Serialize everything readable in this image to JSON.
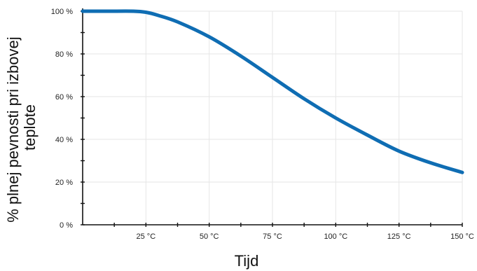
{
  "chart_data": {
    "type": "line",
    "xlabel": "Tijd",
    "ylabel_lines": [
      "% plnej pevnosti pri izbovej",
      "teplote"
    ],
    "xlim": [
      0,
      150
    ],
    "ylim": [
      0,
      100
    ],
    "x_ticks": [
      {
        "value": 25,
        "label": "25 °C"
      },
      {
        "value": 50,
        "label": "50 °C"
      },
      {
        "value": 75,
        "label": "75 °C"
      },
      {
        "value": 100,
        "label": "100 °C"
      },
      {
        "value": 125,
        "label": "125 °C"
      },
      {
        "value": 150,
        "label": "150 °C"
      }
    ],
    "x_minor_tick_step": 12.5,
    "y_ticks": [
      {
        "value": 0,
        "label": "0 %"
      },
      {
        "value": 20,
        "label": "20 %"
      },
      {
        "value": 40,
        "label": "40 %"
      },
      {
        "value": 60,
        "label": "60 %"
      },
      {
        "value": 80,
        "label": "80 %"
      },
      {
        "value": 100,
        "label": "100 %"
      }
    ],
    "y_minor_tick_step": 10,
    "grid": true,
    "series": [
      {
        "color": "#0f6db3",
        "x": [
          0,
          10,
          20,
          25,
          30,
          37.5,
          50,
          62.5,
          75,
          87.5,
          100,
          112.5,
          125,
          137.5,
          150
        ],
        "y": [
          100,
          100,
          100,
          99.5,
          98,
          95,
          88,
          79,
          69,
          59,
          50,
          42,
          34.5,
          29,
          24.5
        ]
      }
    ]
  }
}
